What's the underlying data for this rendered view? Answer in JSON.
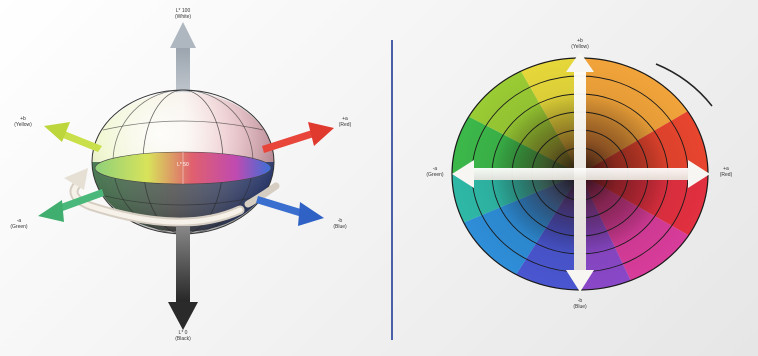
{
  "colors": {
    "divider": "#4a5fa8",
    "arrow_l_plus": "#cfd4da",
    "arrow_l_minus": "#3a3a3a",
    "arrow_b_plus": "#c9e04a",
    "arrow_a_plus": "#e8463a",
    "arrow_a_minus": "#4ab87a",
    "arrow_b_minus": "#3a6fd0",
    "hue_arrow": "#d8d0c4"
  },
  "sphere": {
    "l_plus": {
      "symbol": "L* 100",
      "name": "(White)"
    },
    "l_minus": {
      "symbol": "L* 0",
      "name": "(Black)"
    },
    "b_plus": {
      "symbol": "+b",
      "name": "(Yellow)"
    },
    "a_plus": {
      "symbol": "+a",
      "name": "(Red)"
    },
    "a_minus": {
      "symbol": "-a",
      "name": "(Green)"
    },
    "b_minus": {
      "symbol": "-b",
      "name": "(Blue)"
    },
    "center": "L* 50"
  },
  "disc": {
    "top": {
      "symbol": "+b",
      "name": "(Yellow)"
    },
    "bottom": {
      "symbol": "-b",
      "name": "(Blue)"
    },
    "left": {
      "symbol": "-a",
      "name": "(Green)"
    },
    "right": {
      "symbol": "+a",
      "name": "(Red)"
    }
  }
}
